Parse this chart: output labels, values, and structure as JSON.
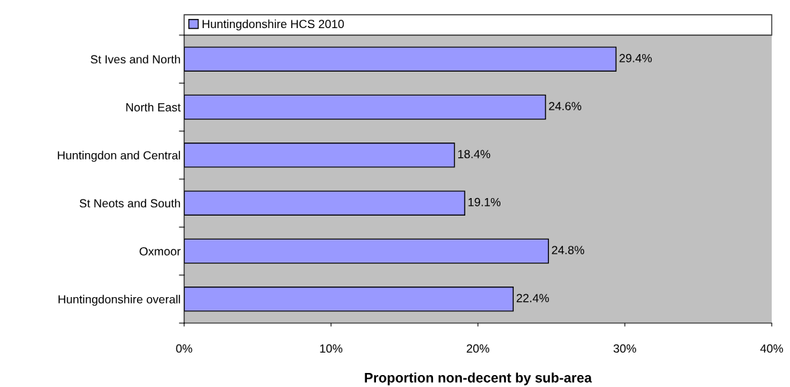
{
  "chart_data": {
    "type": "bar",
    "orientation": "horizontal",
    "xlabel": "Proportion non-decent by sub-area",
    "categories": [
      "St Ives and North",
      "North East",
      "Huntingdon and Central",
      "St Neots and South",
      "Oxmoor",
      "Huntingdonshire overall"
    ],
    "series": [
      {
        "name": "Huntingdonshire HCS 2010",
        "color": "#9999ff",
        "values": [
          29.4,
          24.6,
          18.4,
          19.1,
          24.8,
          22.4
        ],
        "value_labels": [
          "29.4%",
          "24.6%",
          "18.4%",
          "19.1%",
          "24.8%",
          "22.4%"
        ]
      }
    ],
    "xlim": [
      0,
      40
    ],
    "xticks": [
      {
        "value": 0,
        "label": "0%"
      },
      {
        "value": 10,
        "label": "10%"
      },
      {
        "value": 20,
        "label": "20%"
      },
      {
        "value": 30,
        "label": "30%"
      },
      {
        "value": 40,
        "label": "40%"
      }
    ],
    "legend": "top",
    "grid": false
  }
}
